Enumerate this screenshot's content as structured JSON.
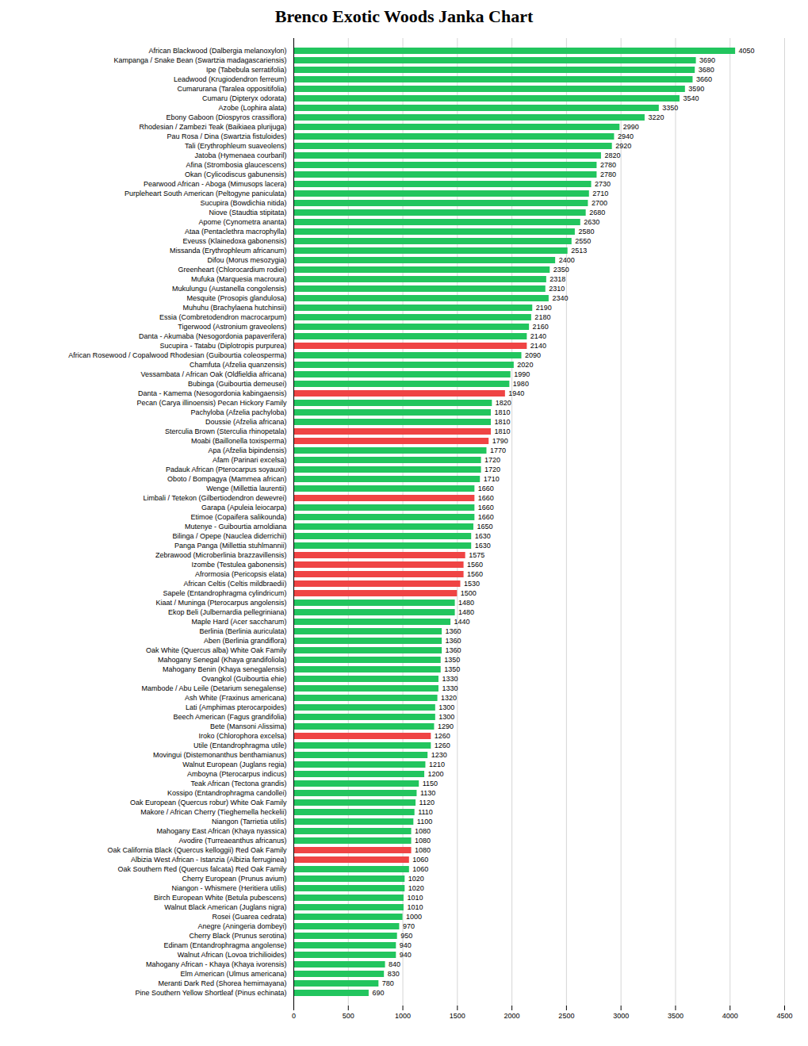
{
  "chart_data": {
    "type": "bar",
    "orientation": "horizontal",
    "title": "Brenco Exotic Woods Janka Chart",
    "categories": [
      "African Blackwood (Dalbergia melanoxylon)",
      "Kampanga / Snake Bean (Swartzia madagascariensis)",
      "Ipe (Tabebula serratifolia)",
      "Leadwood (Krugiodendron ferreum)",
      "Cumarurana (Taralea oppositifolia)",
      "Cumaru (Dipteryx odorata)",
      "Azobe (Lophira alata)",
      "Ebony Gaboon (Diospyros crassiflora)",
      "Rhodesian / Zambezi Teak (Baikiaea plurijuga)",
      "Pau Rosa / Dina (Swartzia fistuloides)",
      "Tali (Erythrophleum suaveolens)",
      "Jatoba (Hymenaea courbaril)",
      "Afina (Strombosia glaucescens)",
      "Okan (Cylicodiscus gabunensis)",
      "Pearwood African - Aboga (Mimusops lacera)",
      "Purpleheart South American (Peltogyne paniculata)",
      "Sucupira (Bowdichia nitida)",
      "Niove (Staudtia stipitata)",
      "Apome (Cynometra ananta)",
      "Ataa (Pentaclethra macrophylla)",
      "Eveuss (Klainedoxa gabonensis)",
      "Missanda (Erythrophleum africanum)",
      "Difou (Morus mesozygia)",
      "Greenheart (Chlorocardium rodiei)",
      "Mufuka (Marquesia macroura)",
      "Mukulungu (Austanella congolensis)",
      "Mesquite (Prosopis glandulosa)",
      "Muhuhu (Brachylaena hutchinsii)",
      "Essia (Combretodendron macrocarpum)",
      "Tigerwood (Astronium graveolens)",
      "Danta - Akumaba (Nesogordonia papaverifera)",
      "Sucupira - Tatabu (Diplotropis purpurea)",
      "African Rosewood / Copalwood Rhodesian (Guibourtia coleosperma)",
      "Chamfuta (Afzelia quanzensis)",
      "Vessambata / African Oak (Oldfieldia africana)",
      "Bubinga (Guibourtia demeusei)",
      "Danta - Kamema (Nesogordonia kabingaensis)",
      "Pecan (Carya illinoensis) Pecan Hickory Family",
      "Pachyloba (Afzelia pachyloba)",
      "Doussie (Afzelia africana)",
      "Sterculia Brown (Sterculia rhinopetala)",
      "Moabi (Baillonella toxisperma)",
      "Apa (Afzelia bipindensis)",
      "Afam (Parinari excelsa)",
      "Padauk African (Pterocarpus soyauxii)",
      "Oboto / Bompagya (Mammea african)",
      "Wenge (Millettia laurentii)",
      "Limbali / Tetekon (Gilbertiodendron dewevrei)",
      "Garapa (Apuleia leiocarpa)",
      "Etimoe (Copaifera salikounda)",
      "Mutenye - Guibourtia arnoldiana",
      "Bilinga / Opepe (Nauclea diderrichii)",
      "Panga Panga (Millettia stuhlmannii)",
      "Zebrawood (Microberlinia brazzavillensis)",
      "Izombe (Testulea gabonensis)",
      "Afrormosia (Pericopsis elata)",
      "African Celtis (Celtis mildbraedii)",
      "Sapele (Entandrophragma cylindricum)",
      "Kiaat / Muninga (Pterocarpus angolensis)",
      "Ekop Beli (Julbernardia pellegriniana)",
      "Maple Hard (Acer saccharum)",
      "Berlinia (Berlinia auriculata)",
      "Aben (Berlinia grandiflora)",
      "Oak White (Quercus alba) White Oak Family",
      "Mahogany Senegal (Khaya grandifoliola)",
      "Mahogany Benin (Khaya senegalensis)",
      "Ovangkol (Guibourtia ehie)",
      "Mambode / Abu Leile (Detarium senegalense)",
      "Ash White (Fraxinus americana)",
      "Lati (Amphimas pterocarpoides)",
      "Beech American (Fagus grandifolia)",
      "Bete (Mansoni Alissima)",
      "Iroko (Chlorophora excelsa)",
      "Utile (Entandrophragma utile)",
      "Movingui (Distemonanthus benthamianus)",
      "Walnut European (Juglans regia)",
      "Amboyna (Pterocarpus indicus)",
      "Teak African (Tectona grandis)",
      "Kossipo (Entandrophragma candollei)",
      "Oak European (Quercus robur) White Oak Family",
      "Makore / African Cherry (Tieghemella heckelii)",
      "Niangon (Tarrietia utilis)",
      "Mahogany East African (Khaya nyassica)",
      "Avodire (Turreaeanthus africanus)",
      "Oak California Black (Quercus kelloggii) Red Oak Family",
      "Albizia West African - Istanzia (Albizia ferruginea)",
      "Oak Southern Red (Quercus falcata) Red Oak Family",
      "Cherry European (Prunus avium)",
      "Niangon - Whismere (Heritiera utilis)",
      "Birch European White (Betula pubescens)",
      "Walnut Black American (Juglans nigra)",
      "Rosei (Guarea cedrata)",
      "Anegre (Aningeria dombeyi)",
      "Cherry Black (Prunus serotina)",
      "Edinam (Entandrophragma angolense)",
      "Walnut African (Lovoa trichilioides)",
      "Mahogany African - Khaya (Khaya ivorensis)",
      "Elm American (Ulmus americana)",
      "Meranti Dark Red (Shorea hemimayana)",
      "Pine Southern Yellow Shortleaf (Pinus echinata)"
    ],
    "values": [
      4050,
      3690,
      3680,
      3660,
      3590,
      3540,
      3350,
      3220,
      2990,
      2940,
      2920,
      2820,
      2780,
      2780,
      2730,
      2710,
      2700,
      2680,
      2630,
      2580,
      2550,
      2513,
      2400,
      2350,
      2318,
      2310,
      2340,
      2190,
      2180,
      2160,
      2140,
      2140,
      2090,
      2020,
      1990,
      1980,
      1940,
      1820,
      1810,
      1810,
      1810,
      1790,
      1770,
      1720,
      1720,
      1710,
      1660,
      1660,
      1660,
      1660,
      1650,
      1630,
      1630,
      1575,
      1560,
      1560,
      1530,
      1500,
      1480,
      1480,
      1440,
      1360,
      1360,
      1360,
      1350,
      1350,
      1330,
      1330,
      1320,
      1300,
      1300,
      1290,
      1260,
      1260,
      1230,
      1210,
      1200,
      1150,
      1130,
      1120,
      1110,
      1100,
      1080,
      1080,
      1080,
      1060,
      1060,
      1020,
      1020,
      1010,
      1010,
      1000,
      970,
      950,
      940,
      940,
      840,
      830,
      780,
      690
    ],
    "colors": [
      "#22c55e",
      "#22c55e",
      "#22c55e",
      "#22c55e",
      "#22c55e",
      "#22c55e",
      "#22c55e",
      "#22c55e",
      "#22c55e",
      "#22c55e",
      "#22c55e",
      "#22c55e",
      "#22c55e",
      "#22c55e",
      "#22c55e",
      "#22c55e",
      "#22c55e",
      "#22c55e",
      "#22c55e",
      "#22c55e",
      "#22c55e",
      "#22c55e",
      "#22c55e",
      "#22c55e",
      "#22c55e",
      "#22c55e",
      "#22c55e",
      "#22c55e",
      "#22c55e",
      "#22c55e",
      "#22c55e",
      "#ef4444",
      "#22c55e",
      "#22c55e",
      "#22c55e",
      "#22c55e",
      "#ef4444",
      "#22c55e",
      "#22c55e",
      "#22c55e",
      "#ef4444",
      "#ef4444",
      "#22c55e",
      "#22c55e",
      "#22c55e",
      "#22c55e",
      "#22c55e",
      "#ef4444",
      "#22c55e",
      "#22c55e",
      "#22c55e",
      "#22c55e",
      "#22c55e",
      "#ef4444",
      "#ef4444",
      "#ef4444",
      "#ef4444",
      "#ef4444",
      "#22c55e",
      "#22c55e",
      "#22c55e",
      "#22c55e",
      "#22c55e",
      "#22c55e",
      "#22c55e",
      "#22c55e",
      "#22c55e",
      "#22c55e",
      "#22c55e",
      "#22c55e",
      "#22c55e",
      "#22c55e",
      "#ef4444",
      "#22c55e",
      "#22c55e",
      "#22c55e",
      "#22c55e",
      "#22c55e",
      "#22c55e",
      "#22c55e",
      "#22c55e",
      "#22c55e",
      "#22c55e",
      "#22c55e",
      "#ef4444",
      "#ef4444",
      "#22c55e",
      "#22c55e",
      "#22c55e",
      "#22c55e",
      "#22c55e",
      "#22c55e",
      "#22c55e",
      "#22c55e",
      "#22c55e",
      "#22c55e",
      "#22c55e",
      "#22c55e",
      "#22c55e",
      "#22c55e"
    ],
    "xlim": [
      0,
      4500
    ],
    "xticks": [
      0,
      500,
      1000,
      1500,
      2000,
      2500,
      3000,
      3500,
      4000,
      4500
    ],
    "grid": true,
    "data_labels": true
  }
}
